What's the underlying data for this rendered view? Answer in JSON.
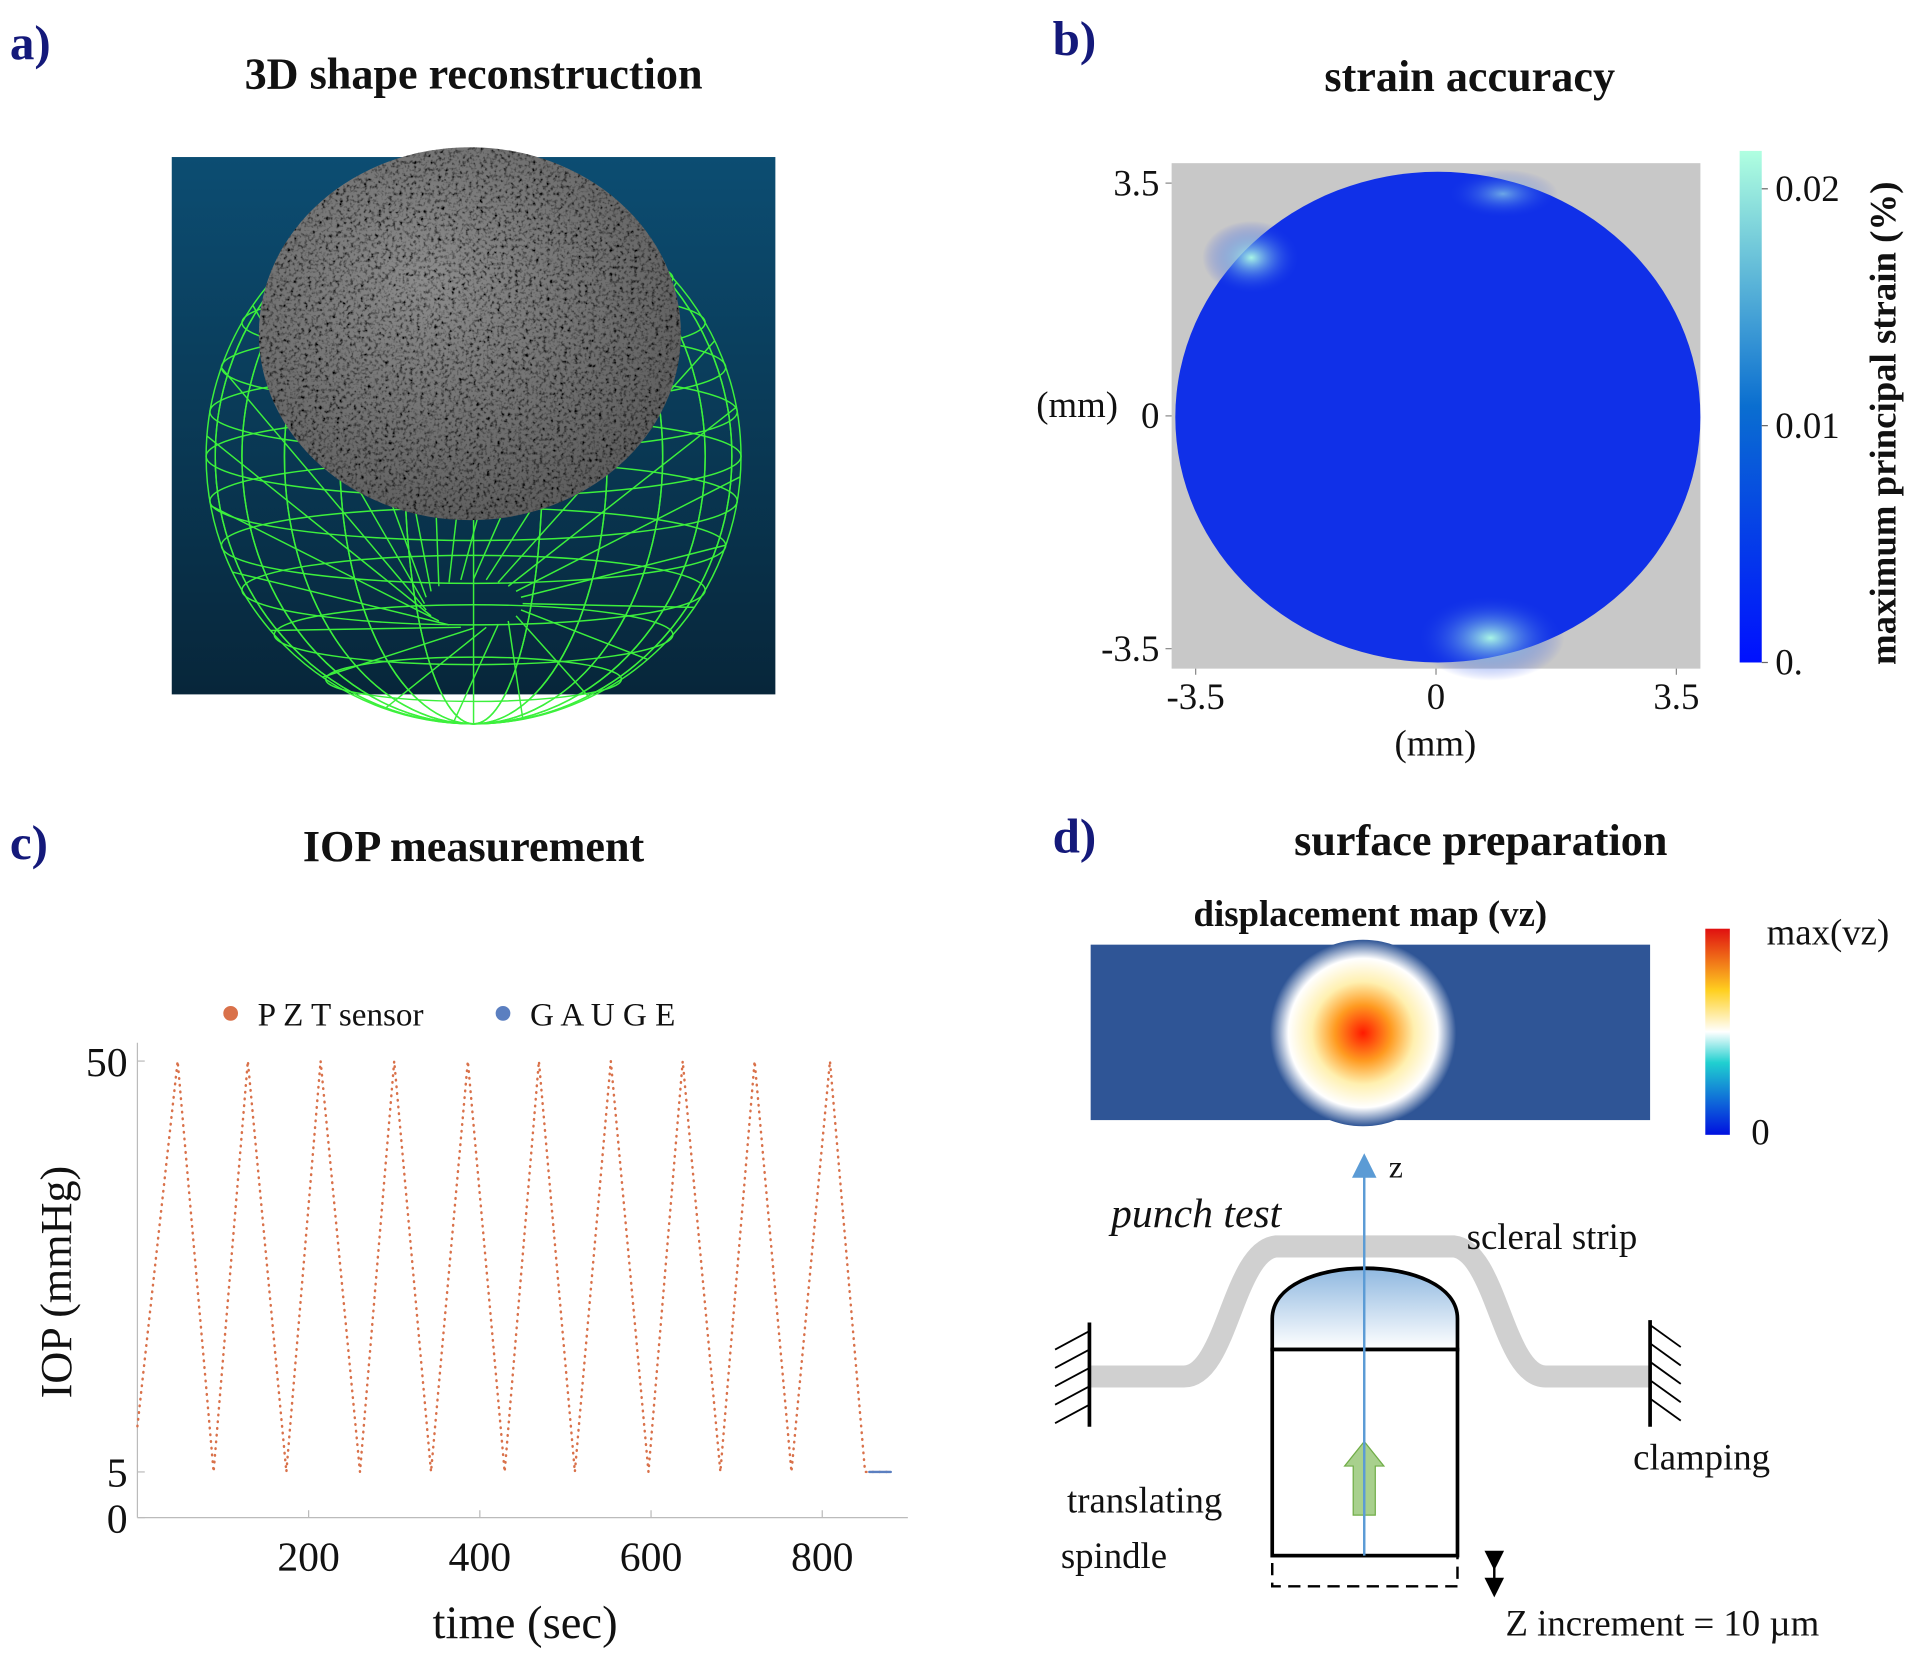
{
  "figure": {
    "a": {
      "label": "a)",
      "title": "3D shape reconstruction"
    },
    "d": {
      "label": "d)",
      "title": "surface preparation",
      "map_title": "displacement map (vz)",
      "colorbar_max": "max(vz)",
      "colorbar_min": "0",
      "axis": "z",
      "punch_test": "punch test",
      "scleral_strip": "scleral strip",
      "clamping": "clamping",
      "translating": "translating",
      "spindle": "spindle",
      "increment": "Z increment = 10 µm"
    }
  },
  "chart_data": [
    {
      "type": "heatmap",
      "label": "b)",
      "title": "strain accuracy",
      "xlabel": "(mm)",
      "ylabel": "(mm)",
      "xlim": [
        -3.85,
        3.85
      ],
      "ylim": [
        -3.8,
        3.8
      ],
      "xticks": [
        -3.5,
        0,
        3.5
      ],
      "yticks": [
        -3.5,
        0,
        3.5
      ],
      "colorbar_label": "maximum principal strain (%)",
      "clim": [
        0,
        0.0216
      ],
      "cticks": [
        {
          "value": 0,
          "label": "0."
        },
        0.01,
        0.02
      ]
    },
    {
      "type": "line",
      "label": "c)",
      "title": "IOP measurement",
      "xlabel": "time (sec)",
      "ylabel": "IOP (mmHg)",
      "xlim": [
        0,
        900
      ],
      "ylim": [
        0,
        52
      ],
      "xticks": [
        200,
        400,
        600,
        800
      ],
      "yticks": [
        0,
        5,
        50
      ],
      "series": [
        {
          "name": "P Z T sensor",
          "color": "#d9714a",
          "x": [
            0,
            47,
            89,
            129,
            174,
            214,
            260,
            300,
            343,
            386,
            429,
            469,
            511,
            553,
            597,
            637,
            681,
            721,
            764,
            809,
            850,
            880
          ],
          "values": [
            10,
            50,
            5,
            50,
            5,
            50,
            5,
            50,
            5,
            50,
            5,
            50,
            5,
            50,
            5,
            50,
            5,
            50,
            5,
            50,
            5,
            5
          ]
        },
        {
          "name": "G A U G E",
          "color": "#5b7fc0",
          "x": [
            855,
            880
          ],
          "values": [
            5,
            5
          ]
        }
      ]
    }
  ]
}
